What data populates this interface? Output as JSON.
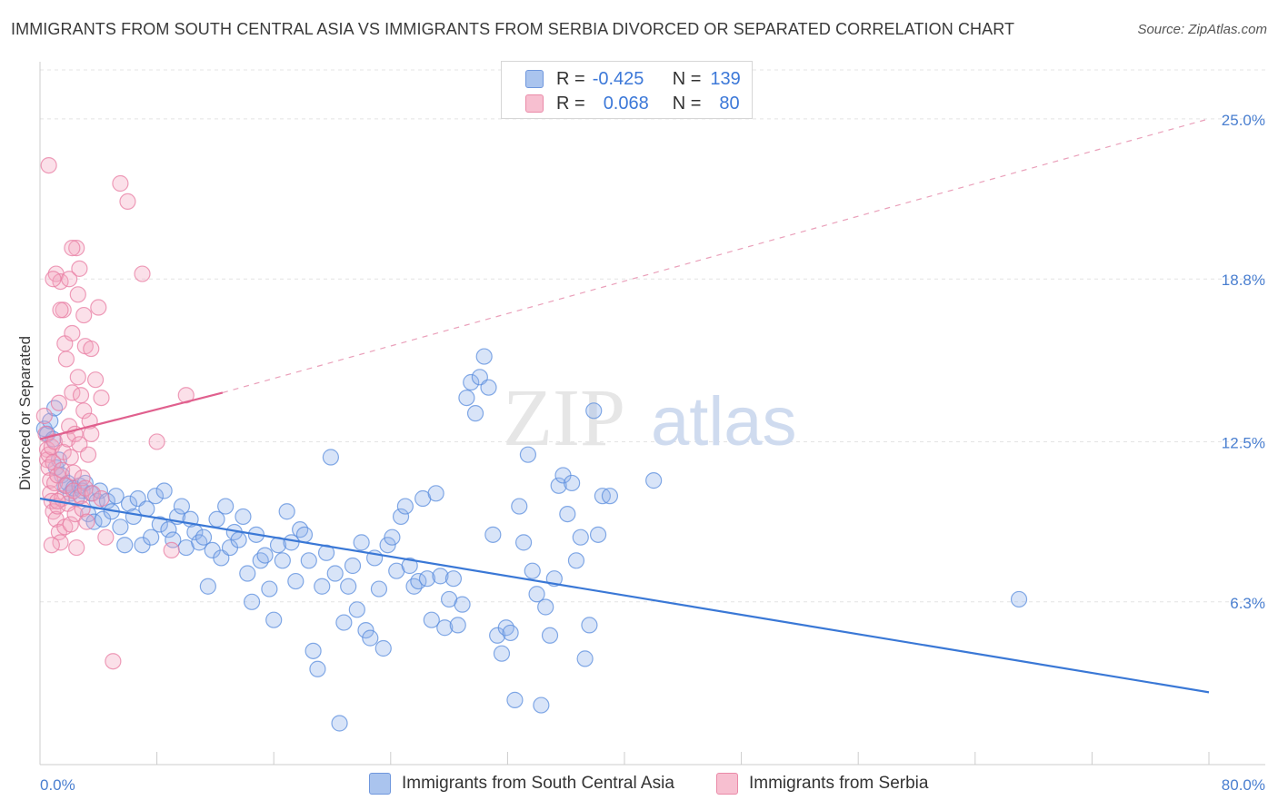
{
  "header": {
    "title": "IMMIGRANTS FROM SOUTH CENTRAL ASIA VS IMMIGRANTS FROM SERBIA DIVORCED OR SEPARATED CORRELATION CHART",
    "source": "Source: ZipAtlas.com"
  },
  "legend": {
    "rows": [
      {
        "r_label": "R =",
        "r_value": "-0.425",
        "n_label": "N =",
        "n_value": "139"
      },
      {
        "r_label": "R =",
        "r_value": "0.068",
        "n_label": "N =",
        "n_value": "80"
      }
    ]
  },
  "watermark": {
    "zip": "ZIP",
    "atlas": "atlas"
  },
  "chart_data": {
    "type": "scatter",
    "title": "IMMIGRANTS FROM SOUTH CENTRAL ASIA VS IMMIGRANTS FROM SERBIA DIVORCED OR SEPARATED CORRELATION CHART",
    "ylabel": "Divorced or Separated",
    "xlim": [
      0,
      80
    ],
    "ylim": [
      0,
      27
    ],
    "x_tick_labels": [
      "0.0%",
      "80.0%"
    ],
    "y_ticks": [
      6.3,
      12.5,
      18.8,
      25.0
    ],
    "y_tick_labels": [
      "6.3%",
      "12.5%",
      "18.8%",
      "25.0%"
    ],
    "grid": true,
    "legend_position": "bottom",
    "colors": {
      "blue": "#4f86d8",
      "pink": "#ea7aa0",
      "blue_line": "#3a78d6",
      "pink_line": "#e0608e"
    },
    "series": [
      {
        "name": "Immigrants from South Central Asia",
        "color": "#4f86d8",
        "trend": {
          "x": [
            0,
            80
          ],
          "y": [
            10.3,
            2.8
          ]
        },
        "x": [
          0.3,
          0.5,
          0.7,
          0.9,
          1.1,
          1.3,
          1.5,
          1.7,
          1.9,
          2.1,
          2.3,
          2.5,
          2.7,
          2.9,
          3.1,
          3.3,
          3.5,
          3.7,
          3.9,
          4.1,
          4.3,
          4.6,
          4.9,
          5.2,
          5.5,
          5.8,
          6.1,
          6.4,
          6.7,
          7.0,
          7.3,
          7.6,
          7.9,
          8.2,
          8.5,
          8.8,
          9.1,
          9.4,
          9.7,
          10.0,
          10.3,
          10.6,
          10.9,
          11.2,
          11.5,
          11.8,
          12.1,
          12.4,
          12.7,
          13.0,
          13.3,
          13.6,
          13.9,
          14.2,
          14.5,
          14.8,
          15.1,
          15.4,
          15.7,
          16.0,
          16.3,
          16.6,
          16.9,
          17.2,
          17.5,
          17.8,
          18.1,
          18.4,
          18.7,
          19.0,
          19.3,
          19.6,
          19.9,
          20.2,
          20.5,
          20.8,
          21.1,
          21.4,
          21.7,
          22.0,
          22.3,
          22.6,
          22.9,
          23.2,
          23.5,
          23.8,
          24.1,
          24.4,
          24.7,
          25.0,
          25.3,
          25.6,
          25.9,
          26.2,
          26.5,
          26.8,
          27.1,
          27.4,
          27.7,
          28.0,
          28.3,
          28.6,
          28.9,
          29.2,
          29.5,
          29.8,
          30.1,
          30.4,
          30.7,
          31.0,
          31.3,
          31.6,
          31.9,
          32.2,
          32.5,
          32.8,
          33.1,
          33.4,
          33.7,
          34.0,
          34.3,
          34.6,
          34.9,
          35.2,
          35.5,
          35.8,
          36.1,
          36.4,
          36.7,
          37.0,
          37.3,
          37.6,
          37.9,
          38.2,
          38.5,
          39.0,
          42.0,
          67.0,
          1.0
        ],
        "y": [
          13.0,
          12.8,
          13.3,
          12.6,
          11.5,
          11.8,
          11.2,
          10.8,
          10.9,
          10.5,
          10.7,
          10.3,
          10.8,
          10.6,
          10.9,
          9.7,
          10.5,
          9.4,
          10.2,
          10.6,
          9.5,
          10.2,
          9.8,
          10.4,
          9.2,
          8.5,
          10.1,
          9.6,
          10.3,
          8.5,
          9.9,
          8.8,
          10.4,
          9.3,
          10.6,
          9.1,
          8.7,
          9.6,
          10.0,
          8.4,
          9.5,
          9.0,
          8.6,
          8.8,
          6.9,
          8.3,
          9.5,
          8.0,
          10.0,
          8.4,
          9.0,
          8.7,
          9.6,
          7.4,
          6.3,
          8.9,
          7.9,
          8.1,
          6.8,
          5.6,
          8.5,
          7.9,
          9.8,
          8.6,
          7.1,
          9.1,
          8.9,
          7.9,
          4.4,
          3.7,
          6.9,
          8.2,
          11.9,
          7.4,
          1.6,
          5.5,
          6.9,
          7.7,
          6.0,
          8.6,
          5.2,
          4.9,
          8.0,
          6.8,
          4.5,
          8.5,
          8.8,
          7.5,
          9.6,
          10.0,
          7.7,
          6.9,
          7.1,
          10.3,
          7.2,
          5.6,
          10.5,
          7.3,
          5.3,
          6.4,
          7.2,
          5.4,
          6.2,
          14.2,
          14.8,
          13.6,
          15.0,
          15.8,
          14.6,
          8.9,
          5.0,
          4.3,
          5.3,
          5.1,
          2.5,
          10.0,
          8.6,
          12.0,
          7.5,
          6.6,
          2.3,
          6.1,
          5.0,
          7.2,
          10.8,
          11.2,
          9.7,
          10.9,
          7.9,
          8.8,
          4.1,
          5.4,
          13.7,
          8.9,
          10.4,
          10.4,
          11.0,
          6.4,
          13.8
        ]
      },
      {
        "name": "Immigrants from Serbia",
        "color": "#ea7aa0",
        "trend": {
          "x": [
            0,
            12.5
          ],
          "y": [
            12.6,
            14.4
          ]
        },
        "trend_ext": {
          "x": [
            12.5,
            80
          ],
          "y": [
            14.4,
            25.0
          ]
        },
        "x": [
          0.3,
          0.4,
          0.5,
          0.5,
          0.6,
          0.6,
          0.7,
          0.7,
          0.8,
          0.8,
          0.9,
          0.9,
          1.0,
          1.0,
          1.1,
          1.1,
          1.2,
          1.2,
          1.3,
          1.3,
          1.4,
          1.4,
          1.5,
          1.5,
          1.6,
          1.6,
          1.7,
          1.7,
          1.8,
          1.8,
          1.9,
          1.9,
          2.0,
          2.0,
          2.1,
          2.1,
          2.2,
          2.2,
          2.3,
          2.3,
          2.4,
          2.4,
          2.5,
          2.5,
          2.6,
          2.6,
          2.7,
          2.7,
          2.8,
          2.8,
          2.9,
          2.9,
          3.0,
          3.0,
          3.1,
          3.1,
          3.2,
          3.3,
          3.4,
          3.5,
          3.6,
          3.8,
          4.0,
          4.2,
          4.5,
          5.0,
          5.5,
          6.0,
          7.0,
          8.0,
          9.0,
          10.0,
          0.6,
          0.9,
          1.4,
          2.2,
          3.5,
          4.2,
          1.2,
          0.8
        ],
        "y": [
          13.5,
          12.8,
          12.2,
          11.8,
          12.0,
          11.5,
          11.0,
          10.5,
          12.3,
          10.2,
          11.7,
          9.8,
          12.5,
          10.9,
          19.0,
          9.5,
          11.2,
          10.0,
          14.0,
          9.0,
          18.7,
          8.6,
          11.4,
          10.3,
          17.6,
          12.1,
          16.3,
          9.2,
          15.7,
          10.8,
          10.1,
          12.6,
          18.8,
          13.1,
          11.9,
          9.3,
          16.7,
          14.4,
          10.6,
          11.3,
          9.7,
          12.8,
          20.0,
          8.4,
          18.2,
          15.0,
          19.2,
          12.4,
          10.4,
          14.3,
          11.1,
          9.9,
          17.4,
          13.7,
          10.7,
          16.2,
          9.4,
          12.0,
          13.3,
          12.8,
          10.5,
          14.9,
          17.7,
          10.3,
          8.8,
          4.0,
          22.5,
          21.8,
          19.0,
          12.5,
          8.3,
          14.3,
          23.2,
          18.8,
          17.6,
          20.0,
          16.1,
          14.2,
          10.2,
          8.5
        ]
      }
    ]
  },
  "bottom_legend": {
    "items": [
      "Immigrants from South Central Asia",
      "Immigrants from Serbia"
    ]
  }
}
